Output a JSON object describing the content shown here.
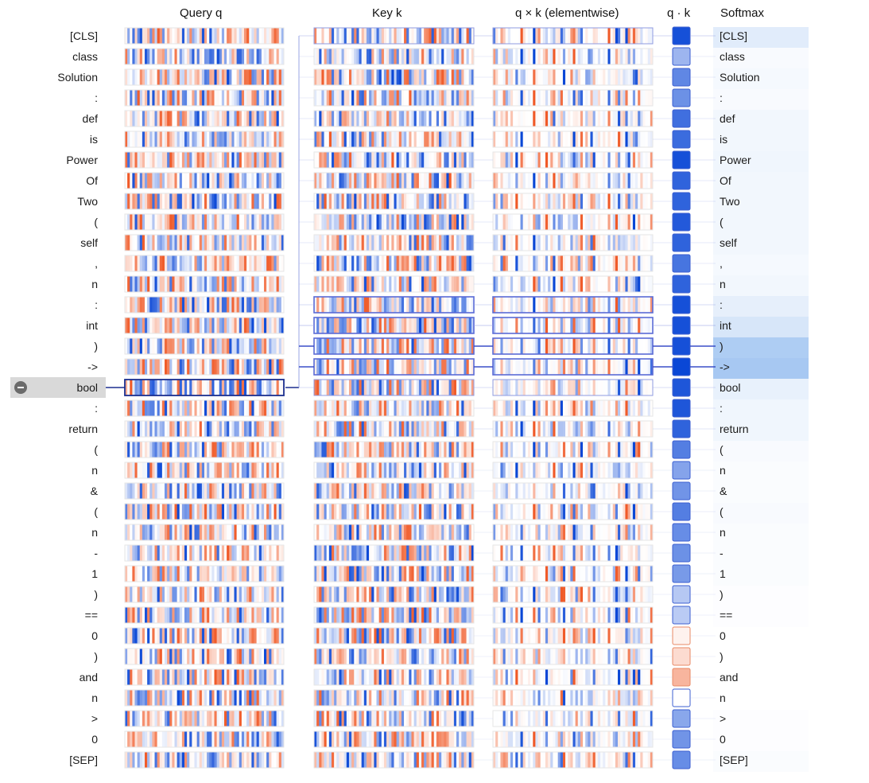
{
  "headers": {
    "query": "Query q",
    "key": "Key k",
    "product": "q × k (elementwise)",
    "dot": "q · k",
    "softmax": "Softmax"
  },
  "tokens": [
    "[CLS]",
    "class",
    "Solution",
    ":",
    "def",
    "is",
    "Power",
    "Of",
    "Two",
    "(",
    "self",
    ",",
    "n",
    ":",
    "int",
    ")",
    "->",
    "bool",
    ":",
    "return",
    "(",
    "n",
    "&",
    "(",
    "n",
    "-",
    "1",
    ")",
    "==",
    "0",
    ")",
    "and",
    "n",
    ">",
    "0",
    "[SEP]"
  ],
  "selected_index": 17,
  "selected_icon": "minus-circle-icon",
  "dot_scores": [
    0.95,
    0.4,
    0.65,
    0.6,
    0.78,
    0.8,
    0.95,
    0.85,
    0.85,
    0.9,
    0.85,
    0.75,
    0.85,
    0.95,
    0.95,
    0.95,
    1.0,
    0.92,
    0.92,
    0.85,
    0.7,
    0.5,
    0.58,
    0.7,
    0.62,
    0.6,
    0.55,
    0.3,
    0.28,
    -0.08,
    -0.22,
    -0.45,
    0.0,
    0.48,
    0.58,
    0.62
  ],
  "softmax_weights": [
    0.12,
    0.03,
    0.04,
    0.03,
    0.05,
    0.05,
    0.06,
    0.05,
    0.05,
    0.05,
    0.05,
    0.04,
    0.05,
    0.1,
    0.16,
    0.32,
    0.35,
    0.09,
    0.06,
    0.06,
    0.03,
    0.02,
    0.02,
    0.03,
    0.02,
    0.02,
    0.02,
    0.01,
    0.01,
    0.0,
    0.0,
    0.0,
    0.0,
    0.01,
    0.01,
    0.02
  ],
  "highlighted_keys": [
    0,
    13,
    14,
    15,
    16,
    17
  ],
  "vector_dims": 64,
  "colors": {
    "positive": "#0a47d6",
    "negative": "#f05a28",
    "selection_border": "#1b2f8f",
    "link_line": "#9aa6e6",
    "softmax_bg": "#bcd3f2",
    "selected_row_bg": "#d9d9d9"
  }
}
